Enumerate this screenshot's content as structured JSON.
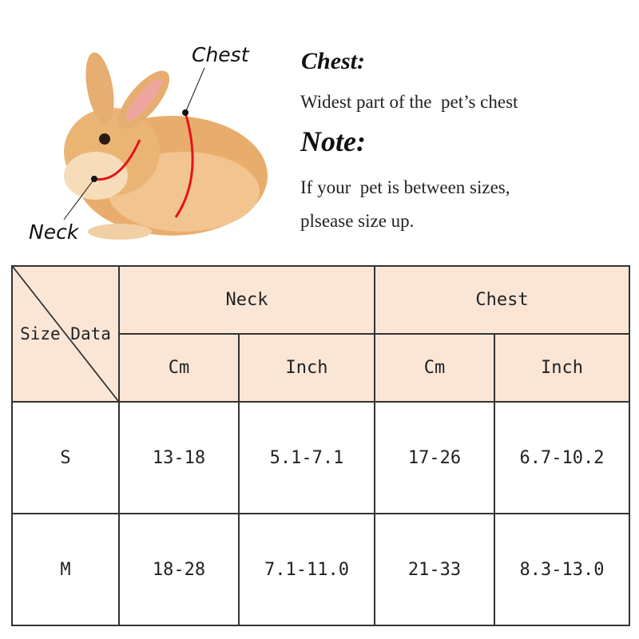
{
  "illustration": {
    "chest_label": "Chest",
    "neck_label": "Neck",
    "measure_color": "#e3141b"
  },
  "info": {
    "chest_heading": "Chest:",
    "chest_text": "Widest part of the  pet’s chest",
    "note_heading": "Note:",
    "note_line1": "If your  pet is between sizes,",
    "note_line2": "plsease size up."
  },
  "table": {
    "corner_label": "Size Data",
    "groups": [
      "Neck",
      "Chest"
    ],
    "units": [
      "Cm",
      "Inch",
      "Cm",
      "Inch"
    ],
    "header_color": "#fbe6d6",
    "rows": [
      {
        "size": "S",
        "values": [
          "13-18",
          "5.1-7.1",
          "17-26",
          "6.7-10.2"
        ]
      },
      {
        "size": "M",
        "values": [
          "18-28",
          "7.1-11.0",
          "21-33",
          "8.3-13.0"
        ]
      }
    ]
  }
}
